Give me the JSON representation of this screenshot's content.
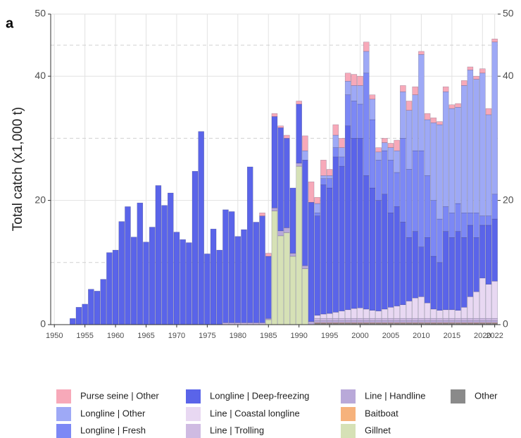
{
  "chart_data": {
    "type": "stacked_bar",
    "panel_label": "a",
    "y_label": "Total catch (x1,000 t)",
    "x": [
      1950,
      1951,
      1952,
      1953,
      1954,
      1955,
      1956,
      1957,
      1958,
      1959,
      1960,
      1961,
      1962,
      1963,
      1964,
      1965,
      1966,
      1967,
      1968,
      1969,
      1970,
      1971,
      1972,
      1973,
      1974,
      1975,
      1976,
      1977,
      1978,
      1979,
      1980,
      1981,
      1982,
      1983,
      1984,
      1985,
      1986,
      1987,
      1988,
      1989,
      1990,
      1991,
      1992,
      1993,
      1994,
      1995,
      1996,
      1997,
      1998,
      1999,
      2000,
      2001,
      2002,
      2003,
      2004,
      2005,
      2006,
      2007,
      2008,
      2009,
      2010,
      2011,
      2012,
      2013,
      2014,
      2015,
      2016,
      2017,
      2018,
      2019,
      2020,
      2021,
      2022
    ],
    "xlim": [
      1949.4,
      2022.5
    ],
    "xticks": [
      1950,
      1955,
      1960,
      1965,
      1970,
      1975,
      1980,
      1985,
      1990,
      1995,
      2000,
      2005,
      2010,
      2015,
      2020,
      2022
    ],
    "ylim": [
      0,
      50
    ],
    "yticks": [
      0,
      20,
      40,
      50
    ],
    "y_dashed_lines": [
      10,
      30,
      45
    ],
    "grid": true,
    "series": [
      {
        "name": "Purse seine | Other",
        "color": "#f7a9b9",
        "values": [
          0,
          0,
          0,
          0,
          0,
          0,
          0,
          0,
          0,
          0,
          0,
          0,
          0,
          0,
          0,
          0,
          0,
          0,
          0,
          0,
          0,
          0,
          0,
          0,
          0,
          0,
          0,
          0,
          0,
          0,
          0,
          0,
          0,
          0,
          0.5,
          0.5,
          0.5,
          0.3,
          0.5,
          0,
          0.5,
          2.4,
          3.3,
          1.0,
          2.5,
          1.0,
          1.7,
          1.5,
          1.3,
          1.8,
          1.5,
          1.5,
          0.7,
          0.7,
          0.7,
          0.7,
          1.7,
          1.0,
          1.5,
          1.3,
          0.5,
          1.0,
          0.8,
          0.5,
          0.8,
          0.6,
          0.6,
          0.8,
          0.5,
          0.5,
          0.7,
          1.0,
          0.5
        ]
      },
      {
        "name": "Longline | Other",
        "color": "#9ea9f6",
        "values": [
          0,
          0,
          0,
          0,
          0,
          0,
          0,
          0,
          0,
          0,
          0,
          0,
          0,
          0,
          0,
          0,
          0,
          0,
          0,
          0,
          0,
          0,
          0,
          0,
          0,
          0,
          0,
          0,
          0,
          0,
          0,
          0,
          0,
          0,
          0,
          0,
          0,
          0,
          0,
          0,
          0,
          1.5,
          0,
          1.5,
          0.5,
          0.5,
          2,
          1.5,
          2.2,
          2.5,
          3,
          3.5,
          3.3,
          1.3,
          1.3,
          2,
          3.5,
          7.5,
          9.5,
          9,
          15.5,
          9,
          12.5,
          15.2,
          18.5,
          16.8,
          15.5,
          20.5,
          23,
          21.5,
          23,
          16.3,
          24.5
        ]
      },
      {
        "name": "Longline | Fresh",
        "color": "#7c88f5",
        "values": [
          0,
          0,
          0,
          0,
          0,
          0,
          0,
          0,
          0,
          0,
          0,
          0,
          0,
          0,
          0,
          0,
          0,
          0,
          0,
          0,
          0,
          0,
          0,
          0,
          0,
          0,
          0,
          0,
          0,
          0,
          0,
          0,
          0,
          0,
          0,
          0,
          0,
          0,
          0,
          0,
          0,
          0,
          0,
          0.5,
          1.0,
          1.5,
          1.5,
          1.5,
          5,
          6,
          5.5,
          16.5,
          11,
          6.5,
          7,
          8.5,
          5.5,
          13.5,
          11,
          13,
          15.5,
          10,
          9,
          7,
          4,
          4,
          4.5,
          4,
          2,
          4,
          1.5,
          1.5,
          4
        ]
      },
      {
        "name": "Longline | Deep-freezing",
        "color": "#5a64e9",
        "values": [
          0,
          0,
          0,
          1.0,
          2.8,
          3.3,
          5.7,
          5.4,
          7.3,
          11.6,
          12.0,
          16.6,
          19.0,
          14.1,
          19.6,
          13.3,
          15.7,
          22.4,
          19.2,
          21.2,
          14.9,
          13.7,
          13.2,
          24.7,
          31.1,
          11.4,
          15.4,
          12.0,
          18.2,
          17.9,
          13.9,
          15.0,
          25.1,
          16.2,
          17.2,
          10.0,
          14.7,
          16.6,
          14.4,
          10.5,
          9.5,
          17,
          19.2,
          16.0,
          20.8,
          20.2,
          25,
          23.3,
          29.6,
          27.4,
          27.3,
          21.5,
          19.7,
          17.8,
          18.5,
          15.2,
          16,
          13.3,
          10.2,
          10.7,
          8,
          10.5,
          8.5,
          7.7,
          12.6,
          11.6,
          12.7,
          11.2,
          11.5,
          8.7,
          8.5,
          9.5,
          10
        ]
      },
      {
        "name": "Line | Coastal longline",
        "color": "#e8d8f2",
        "values": [
          0,
          0,
          0,
          0,
          0,
          0,
          0,
          0,
          0,
          0,
          0,
          0,
          0,
          0,
          0,
          0,
          0,
          0,
          0,
          0,
          0,
          0,
          0,
          0,
          0,
          0,
          0,
          0,
          0,
          0,
          0,
          0,
          0,
          0,
          0,
          0,
          0,
          0,
          0,
          0,
          0,
          0,
          0,
          0.5,
          0.7,
          0.8,
          1.0,
          1.2,
          1.4,
          1.6,
          1.7,
          1.5,
          1.3,
          1.2,
          1.5,
          1.8,
          2.0,
          2.2,
          2.8,
          3.3,
          3.5,
          2.5,
          1.5,
          1.3,
          1.4,
          1.4,
          1.3,
          1.8,
          3.5,
          4.3,
          6.5,
          5.5,
          6.0
        ]
      },
      {
        "name": "Line | Trolling",
        "color": "#cfbbe2",
        "values": [
          0,
          0,
          0,
          0,
          0,
          0,
          0,
          0,
          0,
          0,
          0,
          0,
          0,
          0,
          0,
          0,
          0,
          0,
          0,
          0,
          0,
          0,
          0,
          0,
          0,
          0,
          0,
          0,
          0.3,
          0.3,
          0.3,
          0.3,
          0.3,
          0.3,
          0.3,
          0,
          0,
          0,
          0,
          0,
          0,
          0,
          0,
          0.4,
          0.4,
          0.4,
          0.4,
          0.4,
          0.4,
          0.4,
          0.4,
          0.4,
          0.4,
          0.4,
          0.4,
          0.4,
          0.4,
          0.4,
          0.4,
          0.4,
          0.4,
          0.4,
          0.4,
          0.4,
          0.4,
          0.4,
          0.4,
          0.4,
          0.4,
          0.4,
          0.4,
          0.4,
          0.4
        ]
      },
      {
        "name": "Line | Handline",
        "color": "#b9a9d9",
        "values": [
          0,
          0,
          0,
          0,
          0,
          0,
          0,
          0,
          0,
          0,
          0,
          0,
          0,
          0,
          0,
          0,
          0,
          0,
          0,
          0,
          0,
          0,
          0,
          0,
          0,
          0,
          0,
          0,
          0,
          0,
          0,
          0,
          0,
          0,
          0,
          0.2,
          0.5,
          0.8,
          0.8,
          0.5,
          0.5,
          0.5,
          0.5,
          0.3,
          0.3,
          0.3,
          0.3,
          0.3,
          0.3,
          0.3,
          0.3,
          0.3,
          0.3,
          0.3,
          0.3,
          0.3,
          0.3,
          0.3,
          0.3,
          0.3,
          0.3,
          0.3,
          0.3,
          0.3,
          0.3,
          0.3,
          0.3,
          0.3,
          0.3,
          0.3,
          0.3,
          0.3,
          0.3
        ]
      },
      {
        "name": "Baitboat",
        "color": "#f6b27c",
        "values": [
          0,
          0,
          0,
          0,
          0,
          0,
          0,
          0,
          0,
          0,
          0,
          0,
          0,
          0,
          0,
          0,
          0,
          0,
          0,
          0,
          0,
          0,
          0,
          0,
          0,
          0,
          0,
          0,
          0,
          0,
          0,
          0,
          0,
          0,
          0,
          0,
          0,
          0,
          0,
          0,
          0,
          0,
          0,
          0.1,
          0.1,
          0.1,
          0.1,
          0.1,
          0.1,
          0.1,
          0.1,
          0.1,
          0.1,
          0.1,
          0.1,
          0.1,
          0.1,
          0.1,
          0.1,
          0.1,
          0.1,
          0.1,
          0.1,
          0.1,
          0.1,
          0.1,
          0.1,
          0.1,
          0.1,
          0.1,
          0.1,
          0.1,
          0.1
        ]
      },
      {
        "name": "Gillnet",
        "color": "#d6e1b6",
        "values": [
          0,
          0,
          0,
          0,
          0,
          0,
          0,
          0,
          0,
          0,
          0,
          0,
          0,
          0,
          0,
          0,
          0,
          0,
          0,
          0,
          0,
          0,
          0,
          0,
          0,
          0,
          0,
          0,
          0,
          0,
          0,
          0,
          0,
          0,
          0,
          0.8,
          18.3,
          14.3,
          14.8,
          11,
          25.5,
          9,
          0,
          0,
          0,
          0,
          0,
          0,
          0,
          0,
          0,
          0,
          0,
          0,
          0,
          0,
          0,
          0,
          0,
          0,
          0,
          0,
          0,
          0,
          0,
          0,
          0,
          0,
          0,
          0,
          0,
          0,
          0
        ]
      },
      {
        "name": "Other",
        "color": "#8a8a8a",
        "values": [
          0,
          0,
          0,
          0,
          0,
          0,
          0,
          0,
          0,
          0,
          0,
          0,
          0,
          0,
          0,
          0,
          0,
          0,
          0,
          0,
          0,
          0,
          0,
          0,
          0,
          0,
          0,
          0,
          0,
          0,
          0,
          0,
          0,
          0,
          0,
          0,
          0,
          0,
          0,
          0,
          0,
          0,
          0,
          0.2,
          0.2,
          0.2,
          0.2,
          0.2,
          0.2,
          0.2,
          0.2,
          0.2,
          0.2,
          0.2,
          0.2,
          0.2,
          0.2,
          0.2,
          0.2,
          0.2,
          0.2,
          0.2,
          0.2,
          0.2,
          0.2,
          0.2,
          0.2,
          0.2,
          0.2,
          0.2,
          0.2,
          0.2,
          0.2
        ]
      }
    ]
  }
}
